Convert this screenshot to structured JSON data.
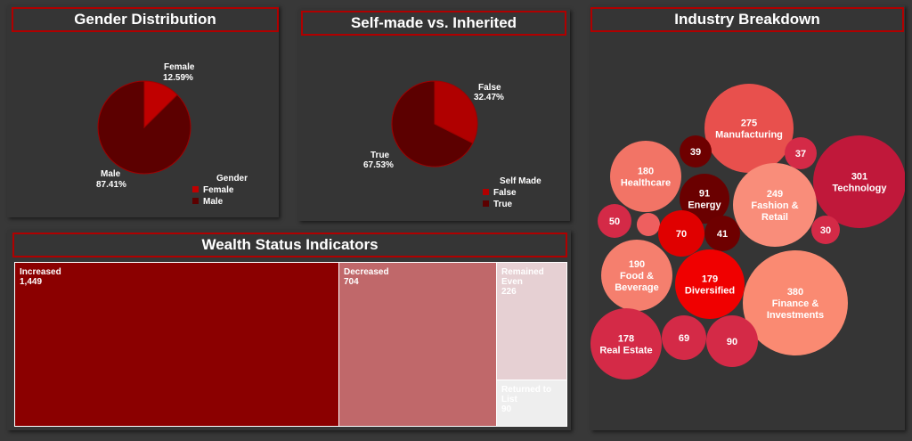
{
  "colors": {
    "female": "#c00000",
    "male": "#5c0000",
    "false": "#b00000",
    "true": "#5c0000",
    "pie_stroke": "#a00000",
    "accent_border": "#b00000"
  },
  "panels": {
    "gender": {
      "title": "Gender Distribution",
      "legend_title": "Gender",
      "legend_items": [
        "Female",
        "Male"
      ]
    },
    "selfmade": {
      "title": "Self-made vs. Inherited",
      "legend_title": "Self Made",
      "legend_items": [
        "False",
        "True"
      ]
    },
    "wealth": {
      "title": "Wealth Status Indicators"
    },
    "industry": {
      "title": "Industry Breakdown"
    }
  },
  "chart_data": [
    {
      "type": "pie",
      "title": "Gender Distribution",
      "slices": [
        {
          "label": "Female",
          "percent": 12.59,
          "percent_label": "12.59%"
        },
        {
          "label": "Male",
          "percent": 87.41,
          "percent_label": "87.41%"
        }
      ]
    },
    {
      "type": "pie",
      "title": "Self-made vs. Inherited",
      "slices": [
        {
          "label": "False",
          "percent": 32.47,
          "percent_label": "32.47%"
        },
        {
          "label": "True",
          "percent": 67.53,
          "percent_label": "67.53%"
        }
      ]
    },
    {
      "type": "treemap",
      "title": "Wealth Status Indicators",
      "items": [
        {
          "label": "Increased",
          "value": 1449,
          "value_label": "1,449",
          "color": "#8b0000",
          "text": "#ffffff"
        },
        {
          "label": "Decreased",
          "value": 704,
          "value_label": "704",
          "color": "#c0686a",
          "text": "#ffffff"
        },
        {
          "label": "Remained Even",
          "value": 226,
          "value_label": "226",
          "color": "#e6d0d3",
          "text": "#ffffff"
        },
        {
          "label": "Returned to List",
          "value": 90,
          "value_label": "90",
          "color": "#eeeeee",
          "text": "#ffffff"
        }
      ]
    },
    {
      "type": "bubble",
      "title": "Industry Breakdown",
      "items": [
        {
          "label": "Manufacturing",
          "value": 275,
          "color": "#e8504d"
        },
        {
          "label": "",
          "value": 37,
          "color": "#d42a47"
        },
        {
          "label": "Technology",
          "value": 301,
          "color": "#c0183a"
        },
        {
          "label": "",
          "value": 39,
          "color": "#6e0000"
        },
        {
          "label": "Healthcare",
          "value": 180,
          "color": "#f27466"
        },
        {
          "label": "Energy",
          "value": 91,
          "color": "#6a0000"
        },
        {
          "label": "Fashion & Retail",
          "value": 249,
          "color": "#f98d7a"
        },
        {
          "label": "",
          "value": 30,
          "color": "#d42a47"
        },
        {
          "label": "",
          "value": 50,
          "color": "#d42a47"
        },
        {
          "label": "",
          "value": null,
          "color": "#ee5f5f"
        },
        {
          "label": "",
          "value": 70,
          "color": "#e00000"
        },
        {
          "label": "",
          "value": 41,
          "color": "#6e0000"
        },
        {
          "label": "Food & Beverage",
          "value": 190,
          "color": "#f57f6e"
        },
        {
          "label": "Diversified",
          "value": 179,
          "color": "#f00000"
        },
        {
          "label": "Finance & Investments",
          "value": 380,
          "color": "#fa8a72"
        },
        {
          "label": "Real Estate",
          "value": 178,
          "color": "#d42a47"
        },
        {
          "label": "",
          "value": 69,
          "color": "#d42a47"
        },
        {
          "label": "",
          "value": 90,
          "color": "#d42a47"
        }
      ]
    }
  ]
}
